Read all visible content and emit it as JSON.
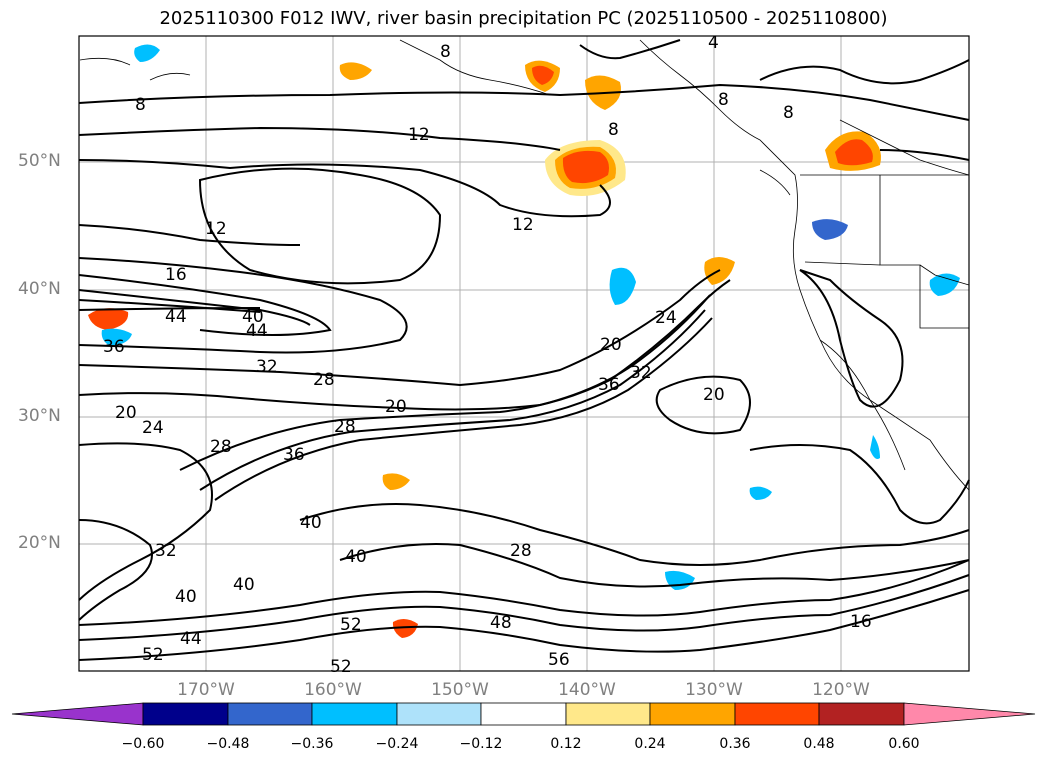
{
  "title": "2025110300 F012 IWV, river basin precipitation PC (2025110500 - 2025110800)",
  "map": {
    "lat_labels": [
      "50°N",
      "40°N",
      "30°N",
      "20°N"
    ],
    "lon_labels": [
      "170°W",
      "160°W",
      "150°W",
      "140°W",
      "130°W",
      "120°W"
    ],
    "contour_labels": [
      "8",
      "8",
      "8",
      "8",
      "8",
      "4",
      "12",
      "12",
      "12",
      "16",
      "20",
      "20",
      "20",
      "20",
      "24",
      "24",
      "28",
      "28",
      "28",
      "28",
      "32",
      "32",
      "36",
      "36",
      "36",
      "40",
      "40",
      "40",
      "40",
      "40",
      "44",
      "44",
      "44",
      "48",
      "52",
      "52",
      "52",
      "56",
      "16",
      "32"
    ]
  },
  "colorbar": {
    "colors": [
      "#9933cc",
      "#00008b",
      "#3366cc",
      "#00bfff",
      "#aee2fa",
      "#ffffff",
      "#ffe88a",
      "#ffa500",
      "#ff4500",
      "#b22222",
      "#ff88aa"
    ],
    "tick_labels": [
      "−0.60",
      "−0.48",
      "−0.36",
      "−0.24",
      "−0.12",
      "0.12",
      "0.24",
      "0.36",
      "0.48",
      "0.60"
    ]
  }
}
